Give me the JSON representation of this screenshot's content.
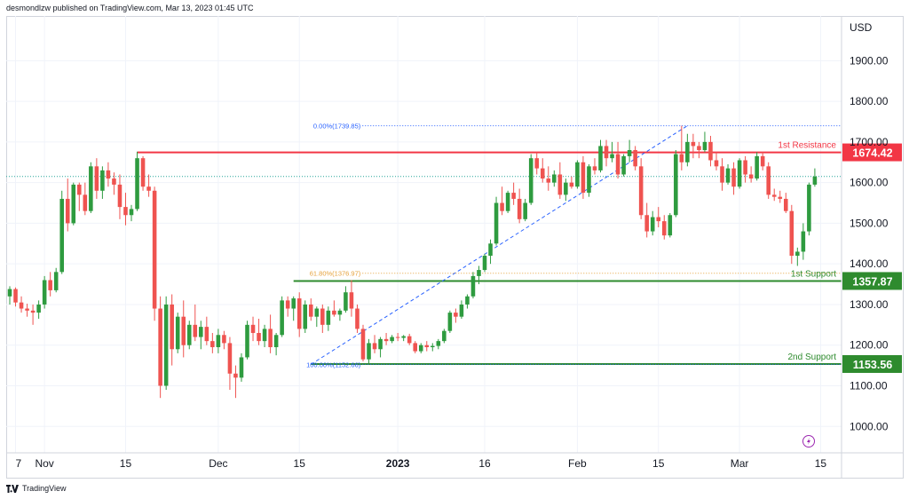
{
  "header": {
    "attribution": "desmondlzw published on TradingView.com, Mar 13, 2023 01:45 UTC"
  },
  "footer": {
    "brand": "TradingView"
  },
  "colors": {
    "up": "#26a69a",
    "upBar": "#2e9b3f",
    "down": "#ef5350",
    "resistance": "#f23645",
    "support": "#2e8b2e",
    "fib": "#2962ff",
    "fib618": "#e6a23c",
    "grid": "#f0f3fa"
  },
  "chart_data": {
    "type": "candlestick",
    "currency": "USD",
    "y_ticks": [
      1000,
      1100,
      1200,
      1300,
      1400,
      1500,
      1600,
      1700,
      1800,
      1900
    ],
    "y_tick_labels": [
      "1000.00",
      "1100.00",
      "1200.00",
      "1300.00",
      "1400.00",
      "1500.00",
      "1600.00",
      "1700.00",
      "1800.00",
      "1900.00"
    ],
    "ylim": [
      935,
      2010
    ],
    "x_ticks": [
      {
        "label": "7",
        "date": "2022-10-27"
      },
      {
        "label": "Nov",
        "date": "2022-11-01"
      },
      {
        "label": "15",
        "date": "2022-11-15"
      },
      {
        "label": "Dec",
        "date": "2022-12-01"
      },
      {
        "label": "15",
        "date": "2022-12-15"
      },
      {
        "label": "2023",
        "date": "2023-01-01"
      },
      {
        "label": "16",
        "date": "2023-01-16"
      },
      {
        "label": "Feb",
        "date": "2023-02-01"
      },
      {
        "label": "15",
        "date": "2023-02-15"
      },
      {
        "label": "Mar",
        "date": "2023-03-01"
      },
      {
        "label": "15",
        "date": "2023-03-15"
      }
    ],
    "xlim": [
      "2022-10-26",
      "2023-03-18"
    ],
    "levels": [
      {
        "name": "1st Resistance",
        "value": 1674.42,
        "label": "1674.42",
        "kind": "resistance"
      },
      {
        "name": "1st Support",
        "value": 1357.87,
        "label": "1357.87",
        "kind": "support"
      },
      {
        "name": "2nd Support",
        "value": 1153.56,
        "label": "1153.56",
        "kind": "support"
      }
    ],
    "fib": {
      "levels": [
        {
          "label": "0.00%(1739.85)",
          "value": 1739.85
        },
        {
          "label": "61.80%(1376.97)",
          "value": 1376.97
        },
        {
          "label": "100.00%(1152.66)",
          "value": 1152.66
        }
      ],
      "trend_start": {
        "date": "2022-12-17",
        "price": 1152.66
      },
      "trend_end": {
        "date": "2023-02-20",
        "price": 1739.85
      }
    },
    "last_price": 1615,
    "candles": [
      {
        "d": "2022-10-26",
        "o": 1320,
        "h": 1345,
        "l": 1300,
        "c": 1338
      },
      {
        "d": "2022-10-27",
        "o": 1338,
        "h": 1342,
        "l": 1295,
        "c": 1305
      },
      {
        "d": "2022-10-28",
        "o": 1305,
        "h": 1320,
        "l": 1280,
        "c": 1290
      },
      {
        "d": "2022-10-29",
        "o": 1290,
        "h": 1302,
        "l": 1270,
        "c": 1285
      },
      {
        "d": "2022-10-30",
        "o": 1285,
        "h": 1300,
        "l": 1250,
        "c": 1280
      },
      {
        "d": "2022-10-31",
        "o": 1280,
        "h": 1310,
        "l": 1265,
        "c": 1300
      },
      {
        "d": "2022-11-01",
        "o": 1300,
        "h": 1370,
        "l": 1290,
        "c": 1360
      },
      {
        "d": "2022-11-02",
        "o": 1360,
        "h": 1380,
        "l": 1320,
        "c": 1335
      },
      {
        "d": "2022-11-03",
        "o": 1335,
        "h": 1390,
        "l": 1330,
        "c": 1380
      },
      {
        "d": "2022-11-04",
        "o": 1380,
        "h": 1580,
        "l": 1375,
        "c": 1560
      },
      {
        "d": "2022-11-05",
        "o": 1560,
        "h": 1610,
        "l": 1480,
        "c": 1500
      },
      {
        "d": "2022-11-06",
        "o": 1500,
        "h": 1600,
        "l": 1495,
        "c": 1595
      },
      {
        "d": "2022-11-07",
        "o": 1595,
        "h": 1600,
        "l": 1530,
        "c": 1570
      },
      {
        "d": "2022-11-08",
        "o": 1570,
        "h": 1600,
        "l": 1520,
        "c": 1530
      },
      {
        "d": "2022-11-09",
        "o": 1530,
        "h": 1650,
        "l": 1525,
        "c": 1640
      },
      {
        "d": "2022-11-10",
        "o": 1640,
        "h": 1660,
        "l": 1560,
        "c": 1580
      },
      {
        "d": "2022-11-11",
        "o": 1580,
        "h": 1640,
        "l": 1560,
        "c": 1630
      },
      {
        "d": "2022-11-12",
        "o": 1630,
        "h": 1650,
        "l": 1590,
        "c": 1610
      },
      {
        "d": "2022-11-13",
        "o": 1610,
        "h": 1625,
        "l": 1570,
        "c": 1595
      },
      {
        "d": "2022-11-14",
        "o": 1595,
        "h": 1620,
        "l": 1510,
        "c": 1540
      },
      {
        "d": "2022-11-15",
        "o": 1540,
        "h": 1575,
        "l": 1495,
        "c": 1520
      },
      {
        "d": "2022-11-16",
        "o": 1520,
        "h": 1545,
        "l": 1505,
        "c": 1535
      },
      {
        "d": "2022-11-17",
        "o": 1535,
        "h": 1676,
        "l": 1530,
        "c": 1660
      },
      {
        "d": "2022-11-18",
        "o": 1660,
        "h": 1665,
        "l": 1580,
        "c": 1590
      },
      {
        "d": "2022-11-19",
        "o": 1590,
        "h": 1620,
        "l": 1565,
        "c": 1580
      },
      {
        "d": "2022-11-20",
        "o": 1580,
        "h": 1590,
        "l": 1260,
        "c": 1290
      },
      {
        "d": "2022-11-21",
        "o": 1290,
        "h": 1320,
        "l": 1070,
        "c": 1100
      },
      {
        "d": "2022-11-22",
        "o": 1100,
        "h": 1320,
        "l": 1090,
        "c": 1300
      },
      {
        "d": "2022-11-23",
        "o": 1300,
        "h": 1325,
        "l": 1150,
        "c": 1190
      },
      {
        "d": "2022-11-24",
        "o": 1190,
        "h": 1280,
        "l": 1180,
        "c": 1270
      },
      {
        "d": "2022-11-25",
        "o": 1270,
        "h": 1310,
        "l": 1170,
        "c": 1200
      },
      {
        "d": "2022-11-26",
        "o": 1200,
        "h": 1260,
        "l": 1190,
        "c": 1250
      },
      {
        "d": "2022-11-27",
        "o": 1250,
        "h": 1300,
        "l": 1210,
        "c": 1220
      },
      {
        "d": "2022-11-28",
        "o": 1220,
        "h": 1260,
        "l": 1190,
        "c": 1245
      },
      {
        "d": "2022-11-29",
        "o": 1245,
        "h": 1270,
        "l": 1200,
        "c": 1210
      },
      {
        "d": "2022-11-30",
        "o": 1210,
        "h": 1230,
        "l": 1180,
        "c": 1195
      },
      {
        "d": "2022-12-01",
        "o": 1195,
        "h": 1240,
        "l": 1180,
        "c": 1225
      },
      {
        "d": "2022-12-02",
        "o": 1225,
        "h": 1235,
        "l": 1190,
        "c": 1205
      },
      {
        "d": "2022-12-03",
        "o": 1205,
        "h": 1220,
        "l": 1090,
        "c": 1130
      },
      {
        "d": "2022-12-04",
        "o": 1130,
        "h": 1150,
        "l": 1070,
        "c": 1120
      },
      {
        "d": "2022-12-05",
        "o": 1120,
        "h": 1180,
        "l": 1110,
        "c": 1170
      },
      {
        "d": "2022-12-06",
        "o": 1170,
        "h": 1260,
        "l": 1165,
        "c": 1250
      },
      {
        "d": "2022-12-07",
        "o": 1250,
        "h": 1270,
        "l": 1210,
        "c": 1230
      },
      {
        "d": "2022-12-08",
        "o": 1230,
        "h": 1265,
        "l": 1200,
        "c": 1210
      },
      {
        "d": "2022-12-09",
        "o": 1210,
        "h": 1250,
        "l": 1195,
        "c": 1240
      },
      {
        "d": "2022-12-10",
        "o": 1240,
        "h": 1275,
        "l": 1180,
        "c": 1195
      },
      {
        "d": "2022-12-11",
        "o": 1195,
        "h": 1230,
        "l": 1175,
        "c": 1225
      },
      {
        "d": "2022-12-12",
        "o": 1225,
        "h": 1320,
        "l": 1220,
        "c": 1310
      },
      {
        "d": "2022-12-13",
        "o": 1310,
        "h": 1320,
        "l": 1270,
        "c": 1290
      },
      {
        "d": "2022-12-14",
        "o": 1290,
        "h": 1320,
        "l": 1260,
        "c": 1315
      },
      {
        "d": "2022-12-15",
        "o": 1315,
        "h": 1330,
        "l": 1220,
        "c": 1240
      },
      {
        "d": "2022-12-16",
        "o": 1240,
        "h": 1310,
        "l": 1230,
        "c": 1300
      },
      {
        "d": "2022-12-17",
        "o": 1300,
        "h": 1315,
        "l": 1260,
        "c": 1270
      },
      {
        "d": "2022-12-18",
        "o": 1270,
        "h": 1295,
        "l": 1245,
        "c": 1290
      },
      {
        "d": "2022-12-19",
        "o": 1290,
        "h": 1300,
        "l": 1230,
        "c": 1250
      },
      {
        "d": "2022-12-20",
        "o": 1250,
        "h": 1295,
        "l": 1235,
        "c": 1285
      },
      {
        "d": "2022-12-21",
        "o": 1285,
        "h": 1310,
        "l": 1270,
        "c": 1275
      },
      {
        "d": "2022-12-22",
        "o": 1275,
        "h": 1290,
        "l": 1260,
        "c": 1285
      },
      {
        "d": "2022-12-23",
        "o": 1285,
        "h": 1345,
        "l": 1280,
        "c": 1330
      },
      {
        "d": "2022-12-24",
        "o": 1330,
        "h": 1360,
        "l": 1270,
        "c": 1290
      },
      {
        "d": "2022-12-25",
        "o": 1290,
        "h": 1300,
        "l": 1230,
        "c": 1240
      },
      {
        "d": "2022-12-26",
        "o": 1240,
        "h": 1250,
        "l": 1160,
        "c": 1165
      },
      {
        "d": "2022-12-27",
        "o": 1165,
        "h": 1215,
        "l": 1155,
        "c": 1205
      },
      {
        "d": "2022-12-28",
        "o": 1205,
        "h": 1225,
        "l": 1180,
        "c": 1190
      },
      {
        "d": "2022-12-29",
        "o": 1190,
        "h": 1220,
        "l": 1170,
        "c": 1215
      },
      {
        "d": "2022-12-30",
        "o": 1215,
        "h": 1230,
        "l": 1200,
        "c": 1210
      },
      {
        "d": "2022-12-31",
        "o": 1210,
        "h": 1225,
        "l": 1205,
        "c": 1220
      },
      {
        "d": "2023-01-01",
        "o": 1220,
        "h": 1230,
        "l": 1210,
        "c": 1218
      },
      {
        "d": "2023-01-02",
        "o": 1218,
        "h": 1225,
        "l": 1210,
        "c": 1222
      },
      {
        "d": "2023-01-03",
        "o": 1222,
        "h": 1228,
        "l": 1200,
        "c": 1205
      },
      {
        "d": "2023-01-04",
        "o": 1205,
        "h": 1210,
        "l": 1180,
        "c": 1185
      },
      {
        "d": "2023-01-05",
        "o": 1185,
        "h": 1205,
        "l": 1180,
        "c": 1200
      },
      {
        "d": "2023-01-06",
        "o": 1200,
        "h": 1210,
        "l": 1185,
        "c": 1195
      },
      {
        "d": "2023-01-07",
        "o": 1195,
        "h": 1205,
        "l": 1185,
        "c": 1198
      },
      {
        "d": "2023-01-08",
        "o": 1198,
        "h": 1215,
        "l": 1190,
        "c": 1210
      },
      {
        "d": "2023-01-09",
        "o": 1210,
        "h": 1240,
        "l": 1205,
        "c": 1235
      },
      {
        "d": "2023-01-10",
        "o": 1235,
        "h": 1285,
        "l": 1230,
        "c": 1280
      },
      {
        "d": "2023-01-11",
        "o": 1280,
        "h": 1290,
        "l": 1255,
        "c": 1270
      },
      {
        "d": "2023-01-12",
        "o": 1270,
        "h": 1310,
        "l": 1265,
        "c": 1300
      },
      {
        "d": "2023-01-13",
        "o": 1300,
        "h": 1325,
        "l": 1290,
        "c": 1320
      },
      {
        "d": "2023-01-14",
        "o": 1320,
        "h": 1380,
        "l": 1315,
        "c": 1370
      },
      {
        "d": "2023-01-15",
        "o": 1370,
        "h": 1395,
        "l": 1350,
        "c": 1385
      },
      {
        "d": "2023-01-16",
        "o": 1385,
        "h": 1425,
        "l": 1380,
        "c": 1420
      },
      {
        "d": "2023-01-17",
        "o": 1420,
        "h": 1460,
        "l": 1400,
        "c": 1450
      },
      {
        "d": "2023-01-18",
        "o": 1450,
        "h": 1565,
        "l": 1445,
        "c": 1550
      },
      {
        "d": "2023-01-19",
        "o": 1550,
        "h": 1590,
        "l": 1520,
        "c": 1530
      },
      {
        "d": "2023-01-20",
        "o": 1530,
        "h": 1580,
        "l": 1525,
        "c": 1575
      },
      {
        "d": "2023-01-21",
        "o": 1575,
        "h": 1600,
        "l": 1545,
        "c": 1560
      },
      {
        "d": "2023-01-22",
        "o": 1560,
        "h": 1585,
        "l": 1500,
        "c": 1510
      },
      {
        "d": "2023-01-23",
        "o": 1510,
        "h": 1560,
        "l": 1505,
        "c": 1550
      },
      {
        "d": "2023-01-24",
        "o": 1550,
        "h": 1670,
        "l": 1545,
        "c": 1660
      },
      {
        "d": "2023-01-25",
        "o": 1660,
        "h": 1675,
        "l": 1620,
        "c": 1635
      },
      {
        "d": "2023-01-26",
        "o": 1635,
        "h": 1660,
        "l": 1600,
        "c": 1610
      },
      {
        "d": "2023-01-27",
        "o": 1610,
        "h": 1640,
        "l": 1580,
        "c": 1600
      },
      {
        "d": "2023-01-28",
        "o": 1600,
        "h": 1630,
        "l": 1590,
        "c": 1620
      },
      {
        "d": "2023-01-29",
        "o": 1620,
        "h": 1650,
        "l": 1560,
        "c": 1570
      },
      {
        "d": "2023-01-30",
        "o": 1570,
        "h": 1610,
        "l": 1555,
        "c": 1600
      },
      {
        "d": "2023-01-31",
        "o": 1600,
        "h": 1615,
        "l": 1585,
        "c": 1590
      },
      {
        "d": "2023-02-01",
        "o": 1590,
        "h": 1655,
        "l": 1585,
        "c": 1650
      },
      {
        "d": "2023-02-02",
        "o": 1650,
        "h": 1665,
        "l": 1560,
        "c": 1575
      },
      {
        "d": "2023-02-03",
        "o": 1575,
        "h": 1645,
        "l": 1565,
        "c": 1640
      },
      {
        "d": "2023-02-04",
        "o": 1640,
        "h": 1660,
        "l": 1620,
        "c": 1630
      },
      {
        "d": "2023-02-05",
        "o": 1630,
        "h": 1705,
        "l": 1625,
        "c": 1690
      },
      {
        "d": "2023-02-06",
        "o": 1690,
        "h": 1705,
        "l": 1640,
        "c": 1660
      },
      {
        "d": "2023-02-07",
        "o": 1660,
        "h": 1700,
        "l": 1650,
        "c": 1670
      },
      {
        "d": "2023-02-08",
        "o": 1670,
        "h": 1700,
        "l": 1610,
        "c": 1620
      },
      {
        "d": "2023-02-09",
        "o": 1620,
        "h": 1670,
        "l": 1615,
        "c": 1665
      },
      {
        "d": "2023-02-10",
        "o": 1665,
        "h": 1705,
        "l": 1650,
        "c": 1680
      },
      {
        "d": "2023-02-11",
        "o": 1680,
        "h": 1690,
        "l": 1630,
        "c": 1640
      },
      {
        "d": "2023-02-12",
        "o": 1640,
        "h": 1660,
        "l": 1510,
        "c": 1520
      },
      {
        "d": "2023-02-13",
        "o": 1520,
        "h": 1550,
        "l": 1465,
        "c": 1480
      },
      {
        "d": "2023-02-14",
        "o": 1480,
        "h": 1530,
        "l": 1470,
        "c": 1515
      },
      {
        "d": "2023-02-15",
        "o": 1515,
        "h": 1540,
        "l": 1490,
        "c": 1505
      },
      {
        "d": "2023-02-16",
        "o": 1505,
        "h": 1520,
        "l": 1460,
        "c": 1470
      },
      {
        "d": "2023-02-17",
        "o": 1470,
        "h": 1525,
        "l": 1465,
        "c": 1520
      },
      {
        "d": "2023-02-18",
        "o": 1520,
        "h": 1680,
        "l": 1515,
        "c": 1670
      },
      {
        "d": "2023-02-19",
        "o": 1670,
        "h": 1740,
        "l": 1630,
        "c": 1650
      },
      {
        "d": "2023-02-20",
        "o": 1650,
        "h": 1720,
        "l": 1640,
        "c": 1700
      },
      {
        "d": "2023-02-21",
        "o": 1700,
        "h": 1720,
        "l": 1660,
        "c": 1690
      },
      {
        "d": "2023-02-22",
        "o": 1690,
        "h": 1700,
        "l": 1660,
        "c": 1680
      },
      {
        "d": "2023-02-23",
        "o": 1680,
        "h": 1725,
        "l": 1675,
        "c": 1700
      },
      {
        "d": "2023-02-24",
        "o": 1700,
        "h": 1715,
        "l": 1640,
        "c": 1655
      },
      {
        "d": "2023-02-25",
        "o": 1655,
        "h": 1675,
        "l": 1630,
        "c": 1640
      },
      {
        "d": "2023-02-26",
        "o": 1640,
        "h": 1660,
        "l": 1580,
        "c": 1600
      },
      {
        "d": "2023-02-27",
        "o": 1600,
        "h": 1645,
        "l": 1595,
        "c": 1635
      },
      {
        "d": "2023-02-28",
        "o": 1635,
        "h": 1650,
        "l": 1570,
        "c": 1590
      },
      {
        "d": "2023-03-01",
        "o": 1590,
        "h": 1660,
        "l": 1585,
        "c": 1655
      },
      {
        "d": "2023-03-02",
        "o": 1655,
        "h": 1665,
        "l": 1600,
        "c": 1620
      },
      {
        "d": "2023-03-03",
        "o": 1620,
        "h": 1640,
        "l": 1600,
        "c": 1610
      },
      {
        "d": "2023-03-04",
        "o": 1610,
        "h": 1675,
        "l": 1605,
        "c": 1665
      },
      {
        "d": "2023-03-05",
        "o": 1665,
        "h": 1675,
        "l": 1630,
        "c": 1640
      },
      {
        "d": "2023-03-06",
        "o": 1640,
        "h": 1650,
        "l": 1560,
        "c": 1570
      },
      {
        "d": "2023-03-07",
        "o": 1570,
        "h": 1585,
        "l": 1555,
        "c": 1565
      },
      {
        "d": "2023-03-08",
        "o": 1565,
        "h": 1580,
        "l": 1550,
        "c": 1560
      },
      {
        "d": "2023-03-09",
        "o": 1560,
        "h": 1575,
        "l": 1525,
        "c": 1530
      },
      {
        "d": "2023-03-10",
        "o": 1530,
        "h": 1545,
        "l": 1400,
        "c": 1420
      },
      {
        "d": "2023-03-11",
        "o": 1420,
        "h": 1440,
        "l": 1395,
        "c": 1430
      },
      {
        "d": "2023-03-12",
        "o": 1430,
        "h": 1500,
        "l": 1410,
        "c": 1480
      },
      {
        "d": "2023-03-13",
        "o": 1480,
        "h": 1600,
        "l": 1470,
        "c": 1595
      },
      {
        "d": "2023-03-14",
        "o": 1595,
        "h": 1635,
        "l": 1590,
        "c": 1615
      }
    ]
  }
}
